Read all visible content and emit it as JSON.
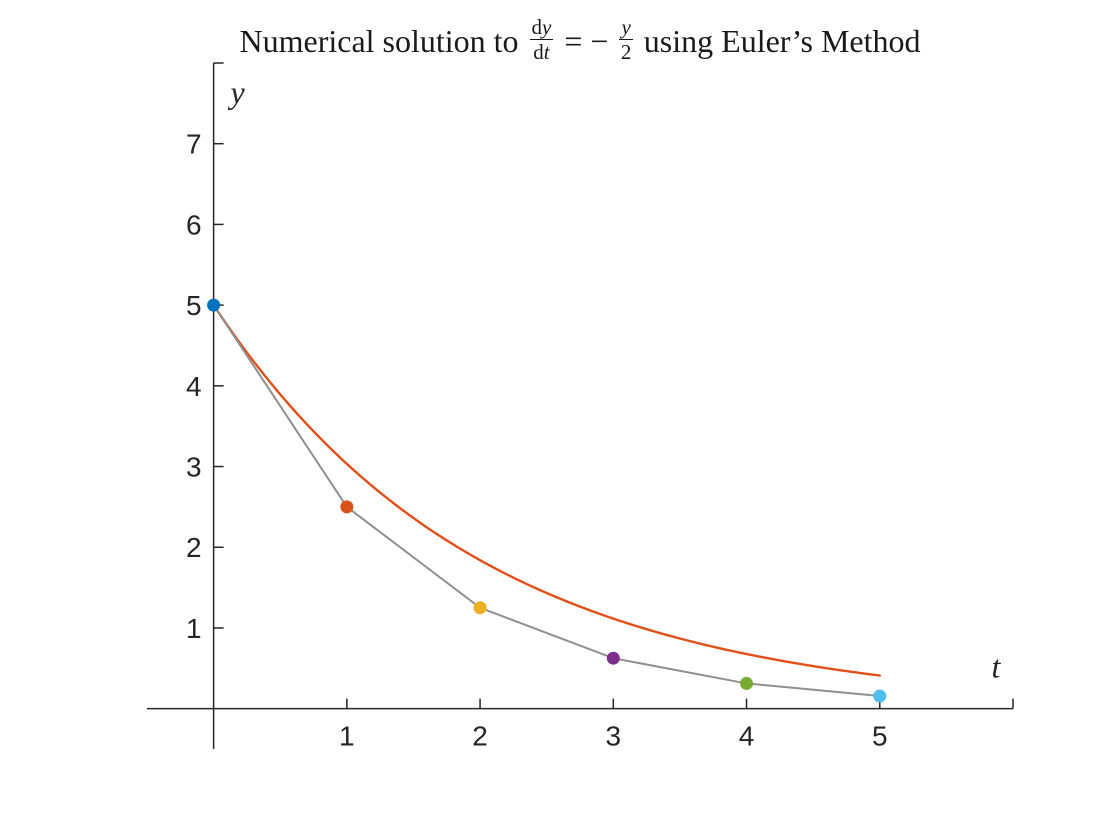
{
  "chart_data": {
    "type": "line",
    "title": {
      "prefix": "Numerical solution to",
      "frac1_num_d": "d",
      "frac1_num_var": "y",
      "frac1_den_d": "d",
      "frac1_den_var": "t",
      "relation": "= −",
      "frac2_num": "y",
      "frac2_den": "2",
      "suffix": "using Euler’s Method"
    },
    "xlabel": "t",
    "ylabel": "y",
    "xlim": [
      -0.5,
      6
    ],
    "ylim": [
      -0.5,
      8
    ],
    "xticks": [
      1,
      2,
      3,
      4,
      5
    ],
    "yticks": [
      1,
      2,
      3,
      4,
      5,
      6,
      7
    ],
    "end_tick_x": 6,
    "end_tick_y": 8,
    "grid": false,
    "legend": "none",
    "axis_color": "#262626",
    "tick_label_color": "#262626",
    "series": [
      {
        "name": "exact-solution",
        "type": "curve",
        "y0": 5,
        "decay_rate": 0.5,
        "t_start": 0,
        "t_end": 5,
        "color": "#E25019",
        "width": 2.4
      },
      {
        "name": "euler-steps",
        "type": "line+markers",
        "step_size": 1,
        "x": [
          0,
          1,
          2,
          3,
          4,
          5
        ],
        "y": [
          5,
          2.5,
          1.25,
          0.625,
          0.3125,
          0.15625
        ],
        "line_color": "#8F8F8F",
        "line_width": 2,
        "marker_radius": 6.5,
        "marker_colors": [
          "#0072BD",
          "#D95319",
          "#EDB120",
          "#7E2F8E",
          "#77AC30",
          "#4DBEEE"
        ]
      }
    ]
  }
}
